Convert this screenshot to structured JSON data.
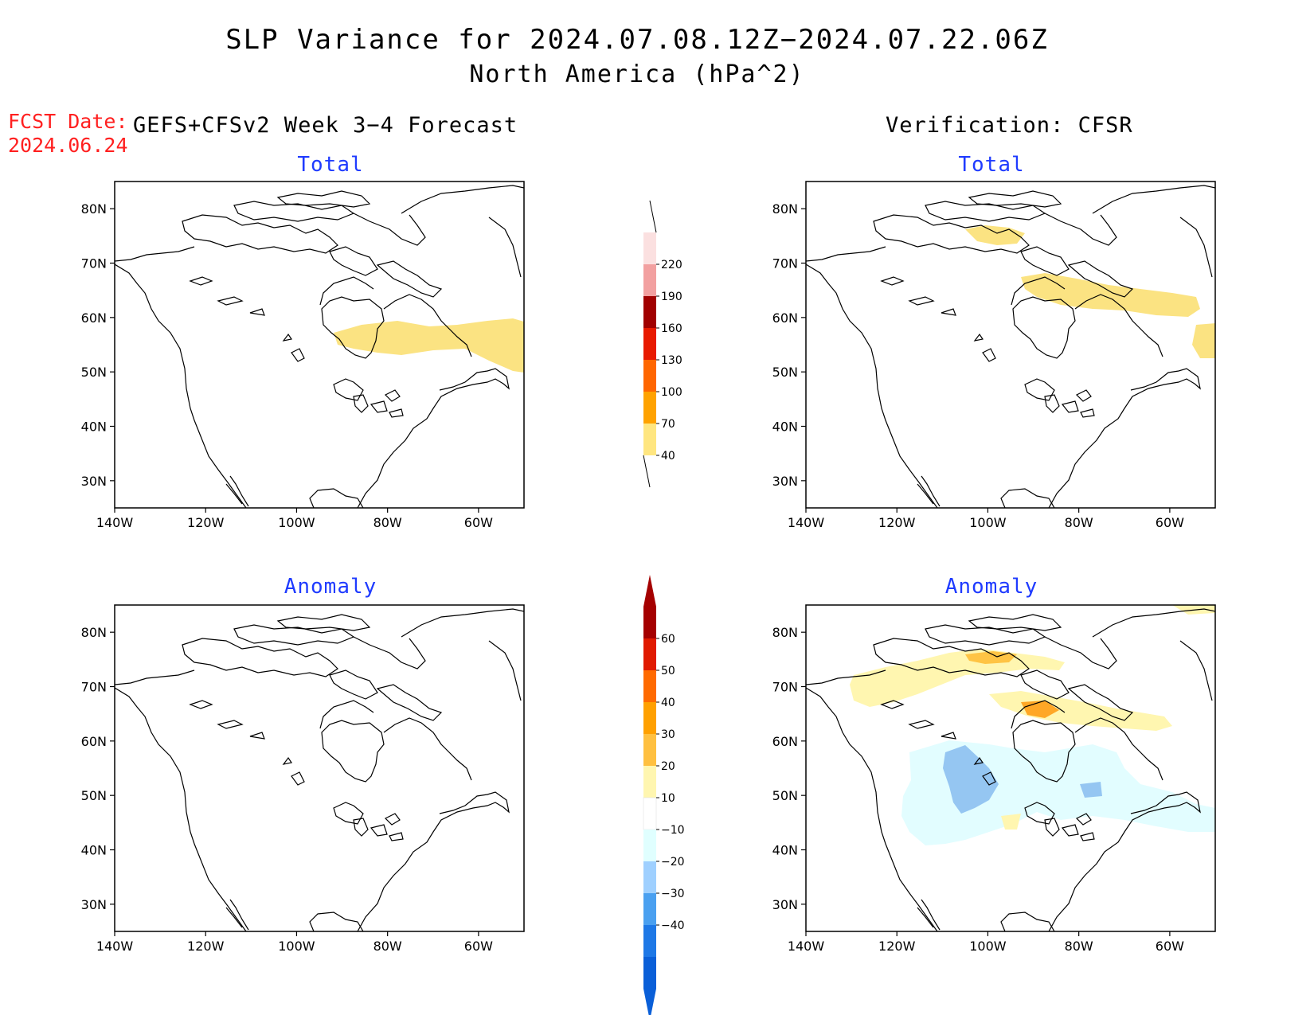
{
  "header": {
    "title": "SLP Variance for 2024.07.08.12Z−2024.07.22.06Z",
    "subtitle": "North America (hPa^2)",
    "fcst_label": "FCST Date:",
    "fcst_date": "2024.06.24"
  },
  "columns": {
    "left_title": "GEFS+CFSv2 Week 3−4 Forecast",
    "right_title": "Verification: CFSR"
  },
  "panels": [
    {
      "id": "forecast-total",
      "label": "Total"
    },
    {
      "id": "verification-total",
      "label": "Total"
    },
    {
      "id": "forecast-anomaly",
      "label": "Anomaly"
    },
    {
      "id": "verification-anomaly",
      "label": "Anomaly"
    }
  ],
  "axes": {
    "lat_labels": [
      "80N",
      "70N",
      "60N",
      "50N",
      "40N",
      "30N"
    ],
    "lon_labels": [
      "140W",
      "120W",
      "100W",
      "80W",
      "60W"
    ],
    "lat_values": [
      80,
      70,
      60,
      50,
      40,
      30
    ],
    "lon_values": [
      -140,
      -120,
      -100,
      -80,
      -60
    ],
    "lon_range": [
      -140,
      -50
    ],
    "lat_range": [
      25,
      85
    ]
  },
  "colorbars": {
    "total": {
      "labels": [
        "40",
        "70",
        "100",
        "130",
        "160",
        "190",
        "220"
      ],
      "colors": [
        "#ffe680",
        "#ffa200",
        "#ff6600",
        "#e81a00",
        "#a10000",
        "#f2a0a0",
        "#fbe0e0"
      ]
    },
    "anomaly": {
      "labels": [
        "60",
        "50",
        "40",
        "30",
        "20",
        "10",
        "−10",
        "−20",
        "−30",
        "−40"
      ],
      "colors_top_down": [
        "#a50000",
        "#e01a00",
        "#ff6a00",
        "#ffa000",
        "#ffc040",
        "#fff6b0",
        "#ffffff",
        "#e0ffff",
        "#9fd0ff",
        "#4aa0f0",
        "#1e78e6",
        "#0a5fd8"
      ]
    }
  },
  "colors": {
    "total_40_70": "#fbe382",
    "anom_10_20": "#fff6b0",
    "anom_20_30": "#ffc444",
    "anom_30_40": "#ffa726",
    "anom_neg_10_20": "#e2fdff",
    "anom_neg_20_30": "#95c6f2",
    "panel_title": "#1f3bff",
    "fcst": "#ff2020"
  }
}
